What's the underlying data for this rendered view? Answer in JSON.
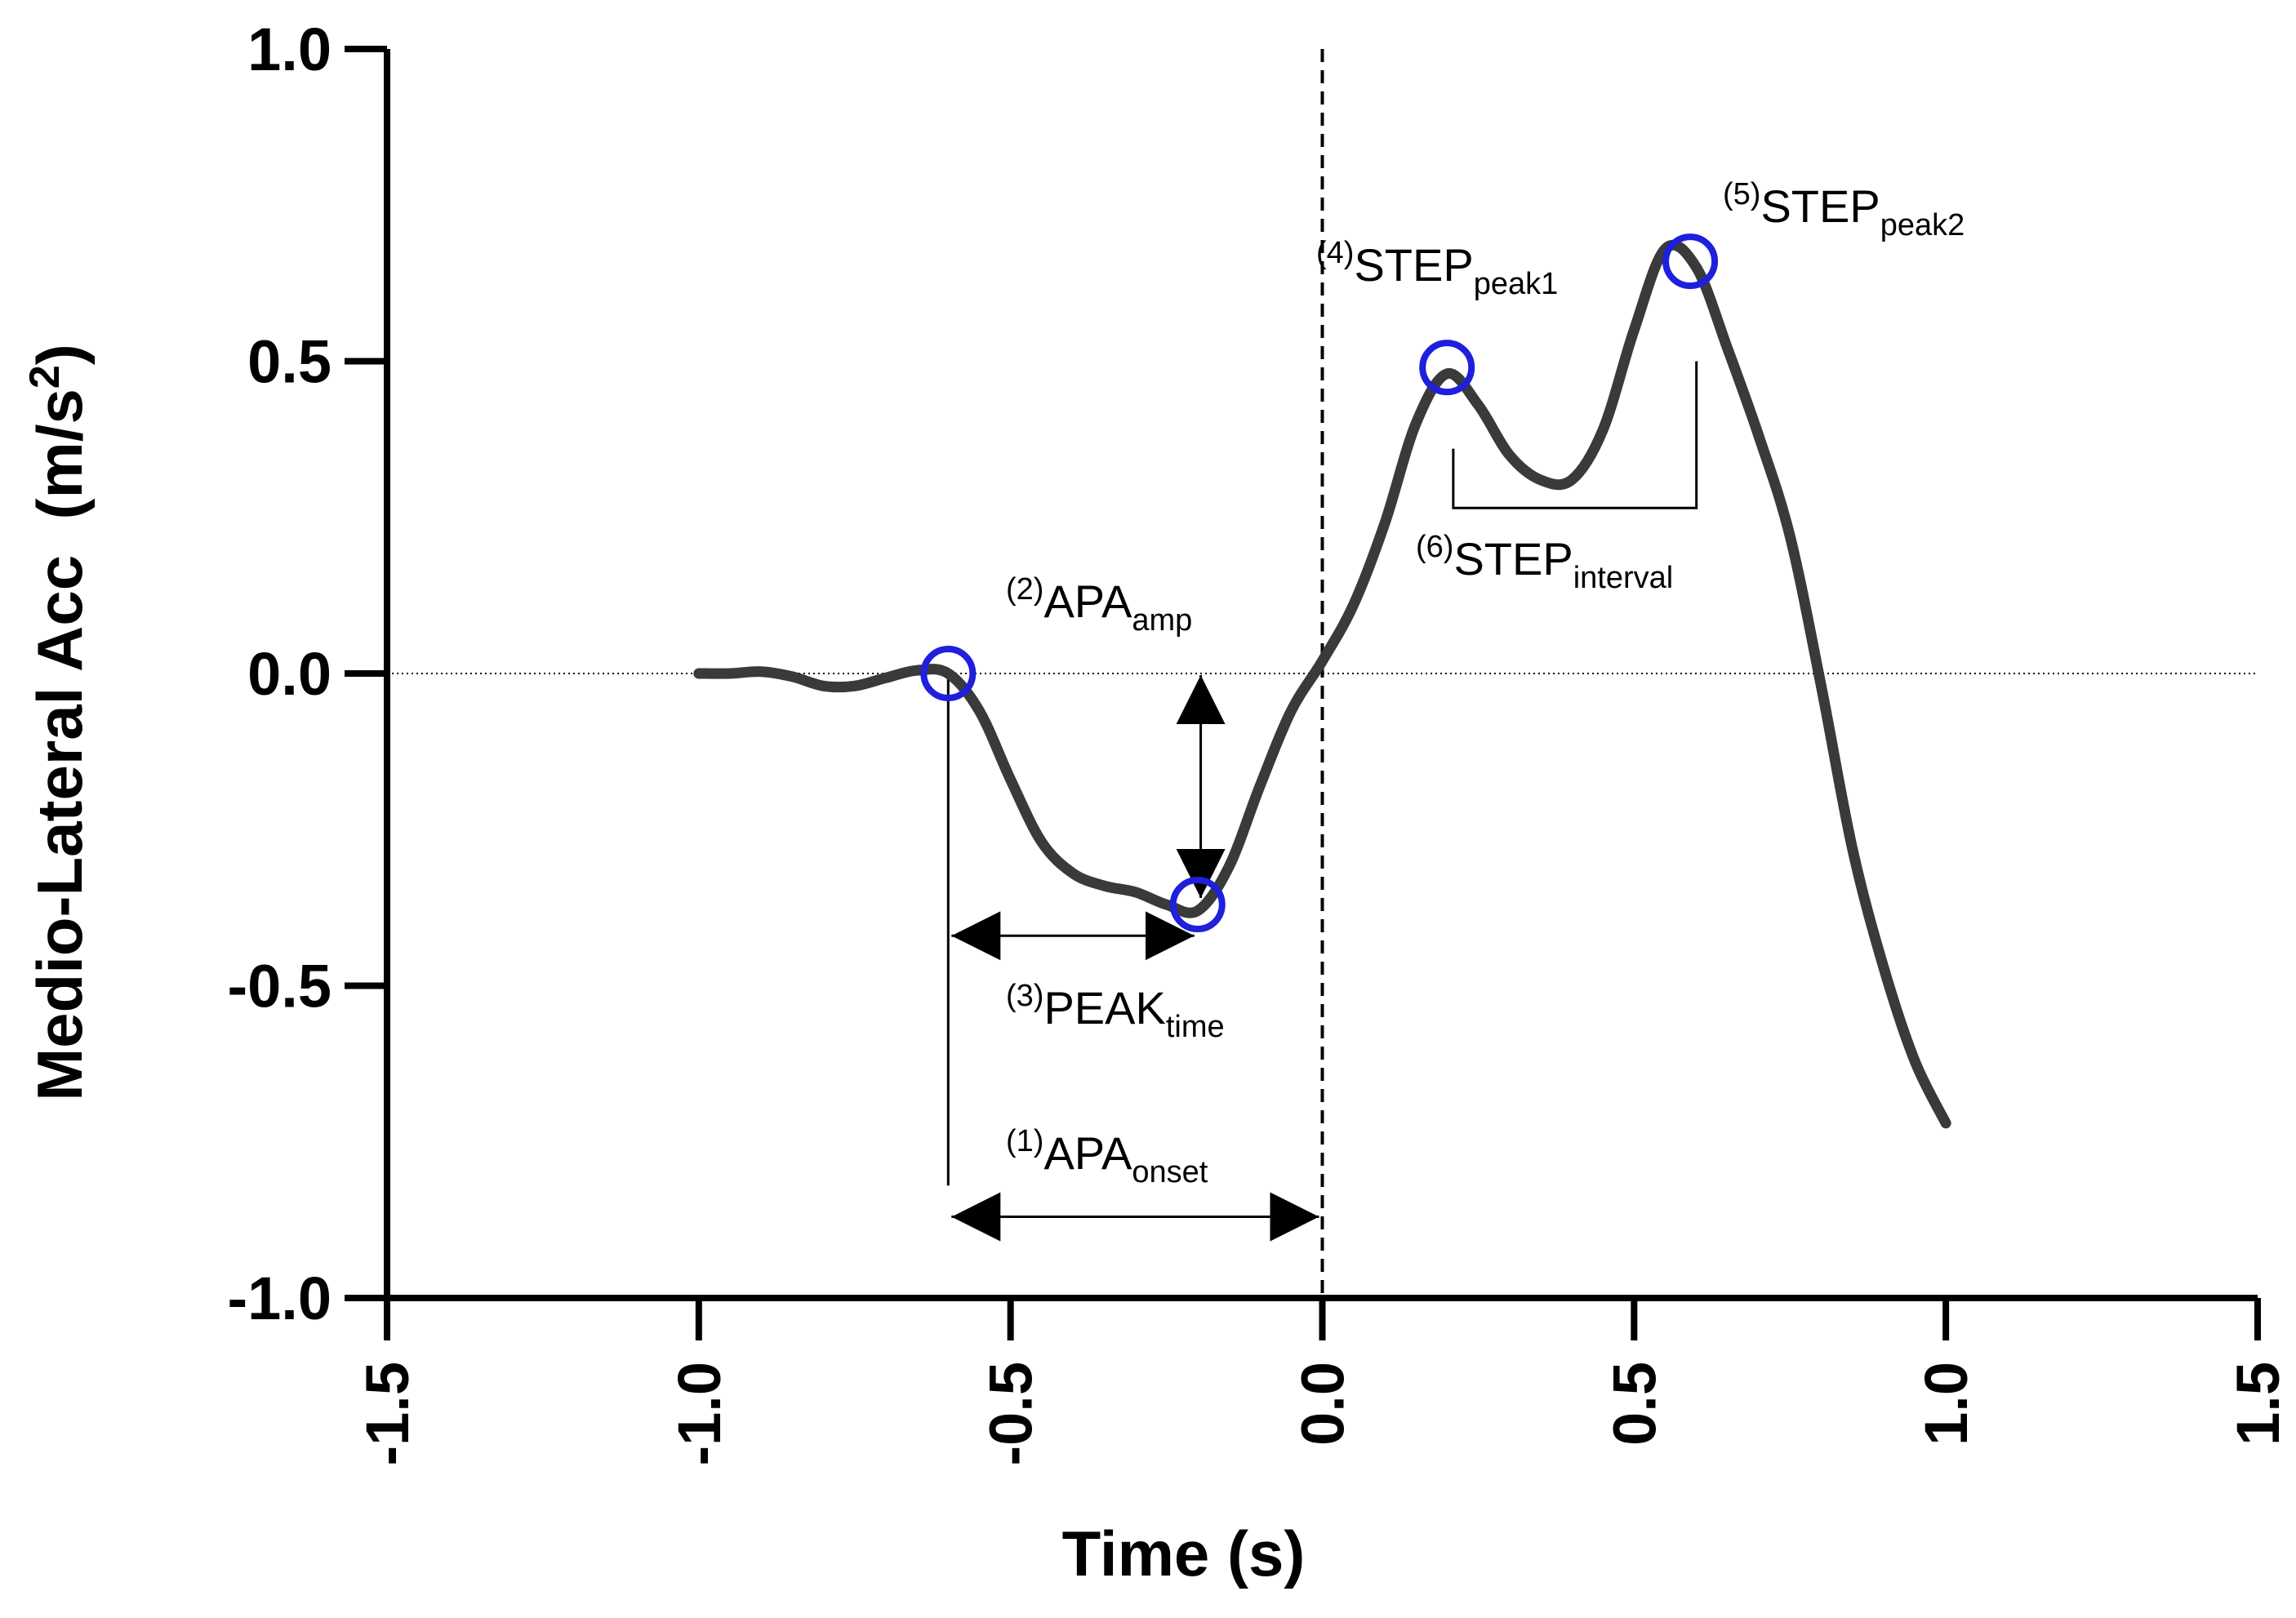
{
  "chart_data": {
    "type": "line",
    "title": "",
    "xlabel": "Time (s)",
    "ylabel": "Medio-Lateral Acc",
    "ylabel_units_prefix": "(m/s",
    "ylabel_units_exp": "2",
    "ylabel_units_suffix": ")",
    "xlim": [
      -1.5,
      1.5
    ],
    "ylim": [
      -1.0,
      1.0
    ],
    "xticks": [
      -1.5,
      -1.0,
      -0.5,
      0.0,
      0.5,
      1.0,
      1.5
    ],
    "xtick_labels": [
      "-1.5",
      "-1.0",
      "-0.5",
      "0.0",
      "0.5",
      "1.0",
      "1.5"
    ],
    "yticks": [
      1.0,
      0.5,
      0.0,
      -0.5,
      -1.0
    ],
    "ytick_labels": [
      "1.0",
      "0.5",
      "0.0",
      "-0.5",
      "-1.0"
    ],
    "grid": false,
    "reference_lines": {
      "y_zero_dotted": 0.0,
      "x_zero_dashed": 0.0
    },
    "series": [
      {
        "name": "Medio-Lateral Acc",
        "color": "#3a3a3a",
        "x": [
          -1.0,
          -0.95,
          -0.9,
          -0.85,
          -0.8,
          -0.75,
          -0.7,
          -0.65,
          -0.6,
          -0.55,
          -0.5,
          -0.45,
          -0.4,
          -0.35,
          -0.3,
          -0.25,
          -0.2,
          -0.15,
          -0.1,
          -0.05,
          0.0,
          0.05,
          0.1,
          0.15,
          0.2,
          0.25,
          0.3,
          0.35,
          0.4,
          0.45,
          0.5,
          0.55,
          0.6,
          0.65,
          0.7,
          0.75,
          0.8,
          0.85,
          0.9,
          0.95,
          1.0
        ],
        "y": [
          0.0,
          0.0,
          0.003,
          -0.005,
          -0.02,
          -0.02,
          -0.007,
          0.005,
          0.0,
          -0.06,
          -0.17,
          -0.27,
          -0.32,
          -0.34,
          -0.35,
          -0.37,
          -0.38,
          -0.31,
          -0.18,
          -0.06,
          0.02,
          0.11,
          0.24,
          0.4,
          0.48,
          0.43,
          0.35,
          0.31,
          0.31,
          0.39,
          0.55,
          0.68,
          0.65,
          0.52,
          0.38,
          0.22,
          -0.02,
          -0.28,
          -0.47,
          -0.62,
          -0.72
        ]
      }
    ],
    "markers": [
      {
        "name": "APA onset point",
        "x": -0.6,
        "y": 0.0,
        "color": "#1f1fdc"
      },
      {
        "name": "APA peak point",
        "x": -0.2,
        "y": -0.37,
        "color": "#1f1fdc"
      },
      {
        "name": "STEP peak1 point",
        "x": 0.2,
        "y": 0.49,
        "color": "#1f1fdc"
      },
      {
        "name": "STEP peak2 point",
        "x": 0.59,
        "y": 0.66,
        "color": "#1f1fdc"
      }
    ],
    "annotations": {
      "apa_onset": {
        "index": "(1)",
        "main": "APA",
        "sub": "onset"
      },
      "apa_amp": {
        "index": "(2)",
        "main": "APA",
        "sub": "amp"
      },
      "peak_time": {
        "index": "(3)",
        "main": "PEAK",
        "sub": "time"
      },
      "step_peak1": {
        "index": "(4)",
        "main": "STEP",
        "sub": "peak1"
      },
      "step_peak2": {
        "index": "(5)",
        "main": "STEP",
        "sub": "peak2"
      },
      "step_interval": {
        "index": "(6)",
        "main": "STEP",
        "sub": "interval"
      }
    },
    "annotation_spans": {
      "apa_onset_span_x": [
        -0.6,
        0.0
      ],
      "apa_onset_span_y": -0.87,
      "apa_onset_vline_bottom_y": -0.82,
      "peak_time_span_x": [
        -0.6,
        -0.2
      ],
      "peak_time_span_y": -0.42,
      "apa_amp_x": -0.195,
      "apa_amp_span_y": [
        0.0,
        -0.37
      ],
      "step_interval_bracket_x": [
        0.21,
        0.6
      ],
      "step_interval_bracket_y": 0.265,
      "step_interval_right_top_y": 0.5,
      "step_interval_left_top_y": 0.36
    }
  }
}
